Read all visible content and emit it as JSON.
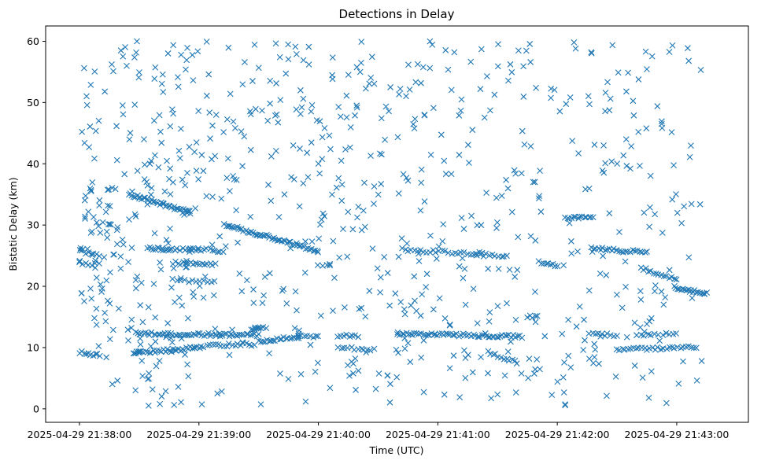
{
  "chart_data": {
    "type": "scatter",
    "title": "Detections in Delay",
    "xlabel": "Time (UTC)",
    "ylabel": "Bistatic Delay (km)",
    "x_unit": "seconds since 2025-04-29 21:38:00",
    "xlim": [
      -17,
      336
    ],
    "ylim": [
      -2.2,
      62.5
    ],
    "marker": "x",
    "marker_color": "#1f77b4",
    "x_ticks": [
      {
        "value": 0,
        "label": "2025-04-29 21:38:00"
      },
      {
        "value": 60,
        "label": "2025-04-29 21:39:00"
      },
      {
        "value": 120,
        "label": "2025-04-29 21:40:00"
      },
      {
        "value": 180,
        "label": "2025-04-29 21:41:00"
      },
      {
        "value": 240,
        "label": "2025-04-29 21:42:00"
      },
      {
        "value": 300,
        "label": "2025-04-29 21:43:00"
      }
    ],
    "y_ticks": [
      {
        "value": 0,
        "label": "0"
      },
      {
        "value": 10,
        "label": "10"
      },
      {
        "value": 20,
        "label": "20"
      },
      {
        "value": 30,
        "label": "30"
      },
      {
        "value": 40,
        "label": "40"
      },
      {
        "value": 50,
        "label": "50"
      },
      {
        "value": 60,
        "label": "60"
      }
    ],
    "tracks": [
      {
        "x0": 25,
        "x1": 56,
        "y0": 35.0,
        "y1": 32.0,
        "n": 40
      },
      {
        "x0": 73,
        "x1": 120,
        "y0": 30.0,
        "y1": 25.8,
        "n": 55
      },
      {
        "x0": 34,
        "x1": 45,
        "y0": 26.2,
        "y1": 26.0,
        "n": 12
      },
      {
        "x0": 45,
        "x1": 60,
        "y0": 26.1,
        "y1": 26.0,
        "n": 12
      },
      {
        "x0": 60,
        "x1": 72,
        "y0": 26.0,
        "y1": 25.8,
        "n": 10
      },
      {
        "x0": 162,
        "x1": 215,
        "y0": 26.0,
        "y1": 25.0,
        "n": 35
      },
      {
        "x0": 257,
        "x1": 285,
        "y0": 26.2,
        "y1": 25.5,
        "n": 25
      },
      {
        "x0": 282,
        "x1": 300,
        "y0": 23.0,
        "y1": 21.0,
        "n": 15
      },
      {
        "x0": 299,
        "x1": 315,
        "y0": 19.8,
        "y1": 18.8,
        "n": 20
      },
      {
        "x0": 47,
        "x1": 68,
        "y0": 23.8,
        "y1": 23.6,
        "n": 18
      },
      {
        "x0": 47,
        "x1": 68,
        "y0": 21.0,
        "y1": 20.8,
        "n": 12
      },
      {
        "x0": 28,
        "x1": 90,
        "y0": 12.3,
        "y1": 12.0,
        "n": 60
      },
      {
        "x0": 27,
        "x1": 48,
        "y0": 9.2,
        "y1": 9.6,
        "n": 22
      },
      {
        "x0": 48,
        "x1": 62,
        "y0": 9.6,
        "y1": 10.2,
        "n": 16
      },
      {
        "x0": 64,
        "x1": 88,
        "y0": 10.4,
        "y1": 10.5,
        "n": 18
      },
      {
        "x0": 86,
        "x1": 90,
        "y0": 13.0,
        "y1": 13.2,
        "n": 5
      },
      {
        "x0": 90,
        "x1": 110,
        "y0": 11.0,
        "y1": 11.8,
        "n": 20
      },
      {
        "x0": 110,
        "x1": 120,
        "y0": 11.8,
        "y1": 11.9,
        "n": 8
      },
      {
        "x0": 130,
        "x1": 140,
        "y0": 12.0,
        "y1": 11.8,
        "n": 8
      },
      {
        "x0": 130,
        "x1": 148,
        "y0": 10.1,
        "y1": 9.6,
        "n": 12
      },
      {
        "x0": 160,
        "x1": 222,
        "y0": 12.3,
        "y1": 11.8,
        "n": 60
      },
      {
        "x0": 205,
        "x1": 220,
        "y0": 9.2,
        "y1": 7.6,
        "n": 12
      },
      {
        "x0": 256,
        "x1": 270,
        "y0": 12.2,
        "y1": 12.0,
        "n": 10
      },
      {
        "x0": 270,
        "x1": 310,
        "y0": 9.6,
        "y1": 10.1,
        "n": 30
      },
      {
        "x0": 280,
        "x1": 300,
        "y0": 12.0,
        "y1": 12.2,
        "n": 12
      },
      {
        "x0": 225,
        "x1": 230,
        "y0": 15.0,
        "y1": 15.0,
        "n": 5
      },
      {
        "x0": 244,
        "x1": 258,
        "y0": 31.2,
        "y1": 31.4,
        "n": 14
      },
      {
        "x0": 232,
        "x1": 240,
        "y0": 23.6,
        "y1": 23.4,
        "n": 8
      },
      {
        "x0": 88,
        "x1": 94,
        "y0": 13.3,
        "y1": 13.3,
        "n": 5
      },
      {
        "x0": 120,
        "x1": 126,
        "y0": 23.5,
        "y1": 23.5,
        "n": 4
      },
      {
        "x0": 0,
        "x1": 10,
        "y0": 9.3,
        "y1": 8.7,
        "n": 10
      },
      {
        "x0": 0,
        "x1": 10,
        "y0": 25.8,
        "y1": 25.0,
        "n": 8
      },
      {
        "x0": 0,
        "x1": 8,
        "y0": 24.0,
        "y1": 23.0,
        "n": 6
      }
    ],
    "clutter": {
      "count": 620,
      "x_range": [
        0,
        313
      ],
      "y_range": [
        0.5,
        60
      ]
    },
    "clutter_groups": [
      {
        "x_range": [
          15,
          60
        ],
        "y_range": [
          0.5,
          60
        ],
        "count": 80
      },
      {
        "x_range": [
          0,
          20
        ],
        "y_range": [
          15,
          37
        ],
        "count": 40
      },
      {
        "x_range": [
          130,
          215
        ],
        "y_range": [
          0.5,
          60
        ],
        "count": 40
      }
    ]
  }
}
